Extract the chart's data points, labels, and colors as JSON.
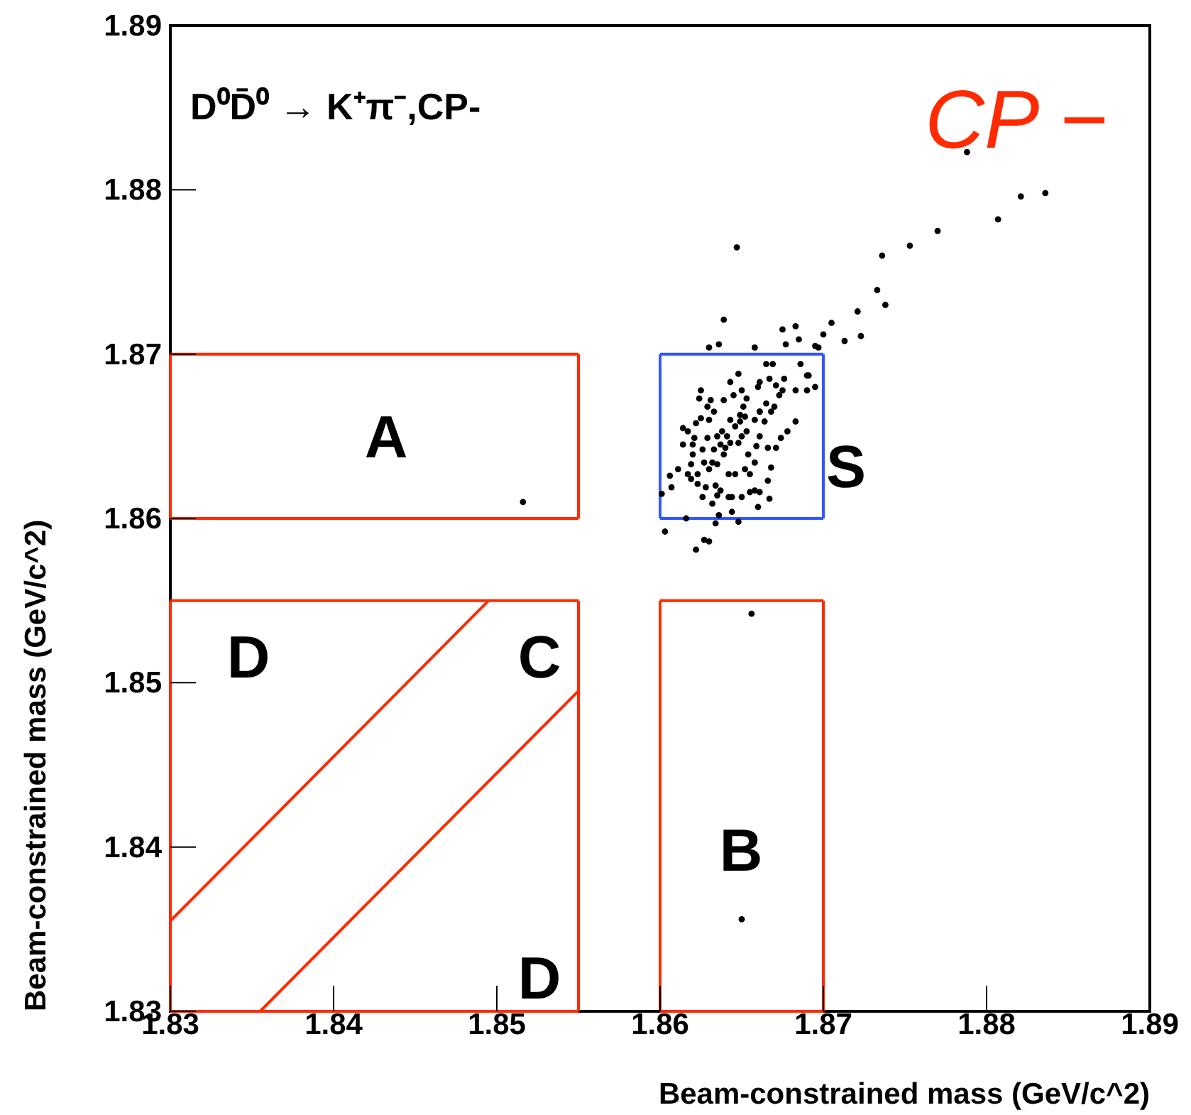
{
  "chart_data": {
    "type": "scatter",
    "title": "D⁰D̄⁰ → K⁺π⁻,CP-",
    "xlabel": "Beam-constrained mass (GeV/c^2)",
    "ylabel": "Beam-constrained mass (GeV/c^2)",
    "xlim": [
      1.83,
      1.89
    ],
    "ylim": [
      1.83,
      1.89
    ],
    "xticks": [
      1.83,
      1.84,
      1.85,
      1.86,
      1.87,
      1.88,
      1.89
    ],
    "yticks": [
      1.83,
      1.84,
      1.85,
      1.86,
      1.87,
      1.88,
      1.89
    ],
    "grid": false,
    "annotations": [
      "CP −",
      "A",
      "S",
      "B",
      "C",
      "D",
      "D"
    ],
    "series": [
      {
        "type": "line",
        "color": "#ff2a00",
        "x": [
          1.83,
          1.855
        ],
        "values": [
          1.86,
          1.86
        ]
      },
      {
        "type": "line",
        "color": "#ff2a00",
        "x": [
          1.83,
          1.855
        ],
        "values": [
          1.87,
          1.87
        ]
      },
      {
        "type": "line",
        "color": "#ff2a00",
        "x": [
          1.83,
          1.83
        ],
        "values": [
          1.86,
          1.87
        ]
      },
      {
        "type": "line",
        "color": "#ff2a00",
        "x": [
          1.855,
          1.855
        ],
        "values": [
          1.86,
          1.87
        ]
      },
      {
        "type": "line",
        "color": "#ff2a00",
        "x": [
          1.86,
          1.87
        ],
        "values": [
          1.83,
          1.83
        ]
      },
      {
        "type": "line",
        "color": "#ff2a00",
        "x": [
          1.86,
          1.87
        ],
        "values": [
          1.855,
          1.855
        ]
      },
      {
        "type": "line",
        "color": "#ff2a00",
        "x": [
          1.86,
          1.86
        ],
        "values": [
          1.83,
          1.855
        ]
      },
      {
        "type": "line",
        "color": "#ff2a00",
        "x": [
          1.87,
          1.87
        ],
        "values": [
          1.83,
          1.855
        ]
      },
      {
        "type": "line",
        "color": "#ff2a00",
        "x": [
          1.83,
          1.855
        ],
        "values": [
          1.83,
          1.83
        ]
      },
      {
        "type": "line",
        "color": "#ff2a00",
        "x": [
          1.83,
          1.855
        ],
        "values": [
          1.855,
          1.855
        ]
      },
      {
        "type": "line",
        "color": "#ff2a00",
        "x": [
          1.83,
          1.83
        ],
        "values": [
          1.83,
          1.855
        ]
      },
      {
        "type": "line",
        "color": "#ff2a00",
        "x": [
          1.855,
          1.855
        ],
        "values": [
          1.83,
          1.855
        ]
      },
      {
        "type": "line",
        "color": "#ff2a00",
        "x": [
          1.83,
          1.8495
        ],
        "values": [
          1.8355,
          1.855
        ]
      },
      {
        "type": "line",
        "color": "#ff2a00",
        "x": [
          1.8355,
          1.855
        ],
        "values": [
          1.83,
          1.8495
        ]
      },
      {
        "type": "line",
        "color": "#3355ff",
        "x": [
          1.86,
          1.87
        ],
        "values": [
          1.86,
          1.86
        ]
      },
      {
        "type": "line",
        "color": "#3355ff",
        "x": [
          1.86,
          1.87
        ],
        "values": [
          1.87,
          1.87
        ]
      },
      {
        "type": "line",
        "color": "#3355ff",
        "x": [
          1.86,
          1.86
        ],
        "values": [
          1.86,
          1.87
        ]
      },
      {
        "type": "line",
        "color": "#3355ff",
        "x": [
          1.87,
          1.87
        ],
        "values": [
          1.86,
          1.87
        ]
      },
      {
        "color": "#000000",
        "marker": "circle",
        "x": [
          1.8647,
          1.8639,
          1.863,
          1.8636,
          1.8658,
          1.8675,
          1.8683,
          1.8677,
          1.8685,
          1.8695,
          1.8697,
          1.87,
          1.8705,
          1.8713,
          1.8723,
          1.8721,
          1.8733,
          1.8738,
          1.8736,
          1.8753,
          1.8665,
          1.8669,
          1.8686,
          1.869,
          1.8691,
          1.8695,
          1.869,
          1.8683,
          1.8676,
          1.8671,
          1.8667,
          1.8661,
          1.866,
          1.8648,
          1.8643,
          1.8625,
          1.8624,
          1.8631,
          1.8629,
          1.8633,
          1.8622,
          1.8625,
          1.863,
          1.8639,
          1.8645,
          1.865,
          1.8653,
          1.8651,
          1.8649,
          1.8652,
          1.8646,
          1.8643,
          1.8638,
          1.8635,
          1.8629,
          1.8621,
          1.8614,
          1.8614,
          1.8617,
          1.862,
          1.8619,
          1.8617,
          1.8611,
          1.8606,
          1.8607,
          1.8601,
          1.8623,
          1.8628,
          1.8634,
          1.8635,
          1.8626,
          1.8632,
          1.8637,
          1.864,
          1.8643,
          1.8639,
          1.8635,
          1.863,
          1.8642,
          1.8646,
          1.8652,
          1.8655,
          1.8658,
          1.8654,
          1.8659,
          1.8661,
          1.8664,
          1.8668,
          1.867,
          1.8673,
          1.8675,
          1.8661,
          1.8665,
          1.8678,
          1.8683,
          1.8674,
          1.8671,
          1.8666,
          1.8668,
          1.8666,
          1.8661,
          1.8658,
          1.8667,
          1.866,
          1.8655,
          1.865,
          1.8644,
          1.8642,
          1.8637,
          1.8636,
          1.8644,
          1.8648,
          1.8634,
          1.8616,
          1.8603,
          1.8627,
          1.863,
          1.8622,
          1.8661,
          1.8658,
          1.8649,
          1.8641,
          1.8633,
          1.8626,
          1.862,
          1.8627,
          1.8632,
          1.8623,
          1.8619,
          1.8648,
          1.865,
          1.8653,
          1.8788,
          1.8821,
          1.8836,
          1.8807,
          1.877,
          1.8516,
          1.8656,
          1.865
        ],
        "values": [
          1.8765,
          1.8721,
          1.8704,
          1.8706,
          1.8704,
          1.8715,
          1.8717,
          1.8706,
          1.8709,
          1.8705,
          1.8704,
          1.8712,
          1.8719,
          1.8708,
          1.8711,
          1.8726,
          1.8739,
          1.873,
          1.876,
          1.8766,
          1.8694,
          1.8694,
          1.8694,
          1.8687,
          1.8687,
          1.868,
          1.8678,
          1.8678,
          1.8685,
          1.8681,
          1.8685,
          1.8683,
          1.868,
          1.8688,
          1.8683,
          1.8678,
          1.8673,
          1.8672,
          1.8668,
          1.8665,
          1.8658,
          1.8661,
          1.866,
          1.8672,
          1.8675,
          1.8678,
          1.8673,
          1.8668,
          1.8659,
          1.8662,
          1.8656,
          1.866,
          1.8653,
          1.865,
          1.8649,
          1.8649,
          1.8645,
          1.8655,
          1.8653,
          1.8639,
          1.8633,
          1.8627,
          1.863,
          1.8626,
          1.8619,
          1.8615,
          1.8621,
          1.8619,
          1.862,
          1.8614,
          1.8613,
          1.8609,
          1.8645,
          1.8643,
          1.8646,
          1.8639,
          1.8633,
          1.863,
          1.8627,
          1.8627,
          1.863,
          1.8627,
          1.8634,
          1.8639,
          1.8644,
          1.865,
          1.8659,
          1.8665,
          1.8668,
          1.8675,
          1.8678,
          1.8665,
          1.867,
          1.8653,
          1.8659,
          1.8649,
          1.8643,
          1.8643,
          1.8631,
          1.8623,
          1.8616,
          1.8617,
          1.8612,
          1.8607,
          1.8616,
          1.8613,
          1.8613,
          1.8613,
          1.8617,
          1.8602,
          1.8604,
          1.8598,
          1.8597,
          1.86,
          1.8592,
          1.8587,
          1.8586,
          1.8581,
          1.8665,
          1.866,
          1.8663,
          1.865,
          1.8642,
          1.8642,
          1.8645,
          1.8634,
          1.8634,
          1.8627,
          1.8624,
          1.8646,
          1.865,
          1.8653,
          1.8823,
          1.8796,
          1.8798,
          1.8782,
          1.8775,
          1.861,
          1.8542,
          1.8356
        ]
      }
    ]
  }
}
